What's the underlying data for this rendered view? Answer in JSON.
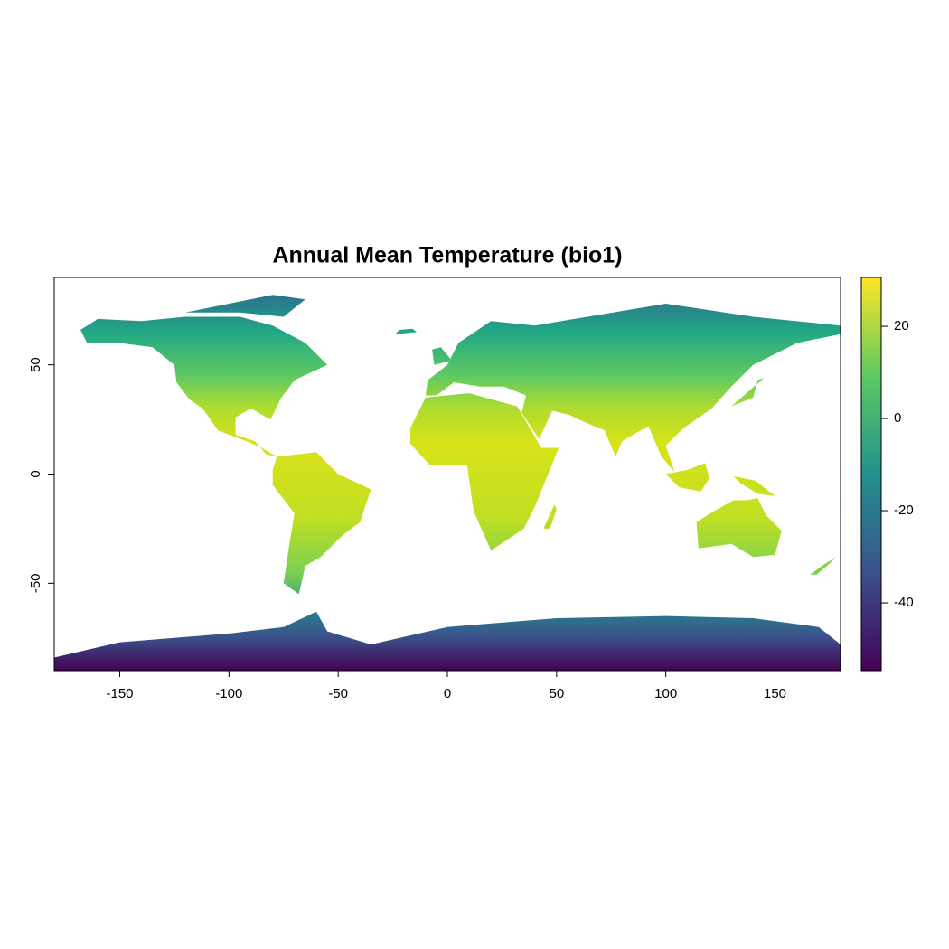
{
  "chart_data": {
    "type": "raster",
    "title": "Annual Mean Temperature (bio1)",
    "xlim": [
      -180,
      180
    ],
    "ylim": [
      -90,
      90
    ],
    "xticks": [
      -150,
      -100,
      -50,
      0,
      50,
      100,
      150
    ],
    "yticks": [
      -50,
      0,
      50
    ],
    "colorbar": {
      "lim": [
        -54.7,
        30.6
      ],
      "ticks": [
        -40,
        -20,
        0,
        20
      ],
      "colors": [
        "#440154",
        "#3b528b",
        "#21918c",
        "#5ec962",
        "#fde725"
      ]
    }
  }
}
